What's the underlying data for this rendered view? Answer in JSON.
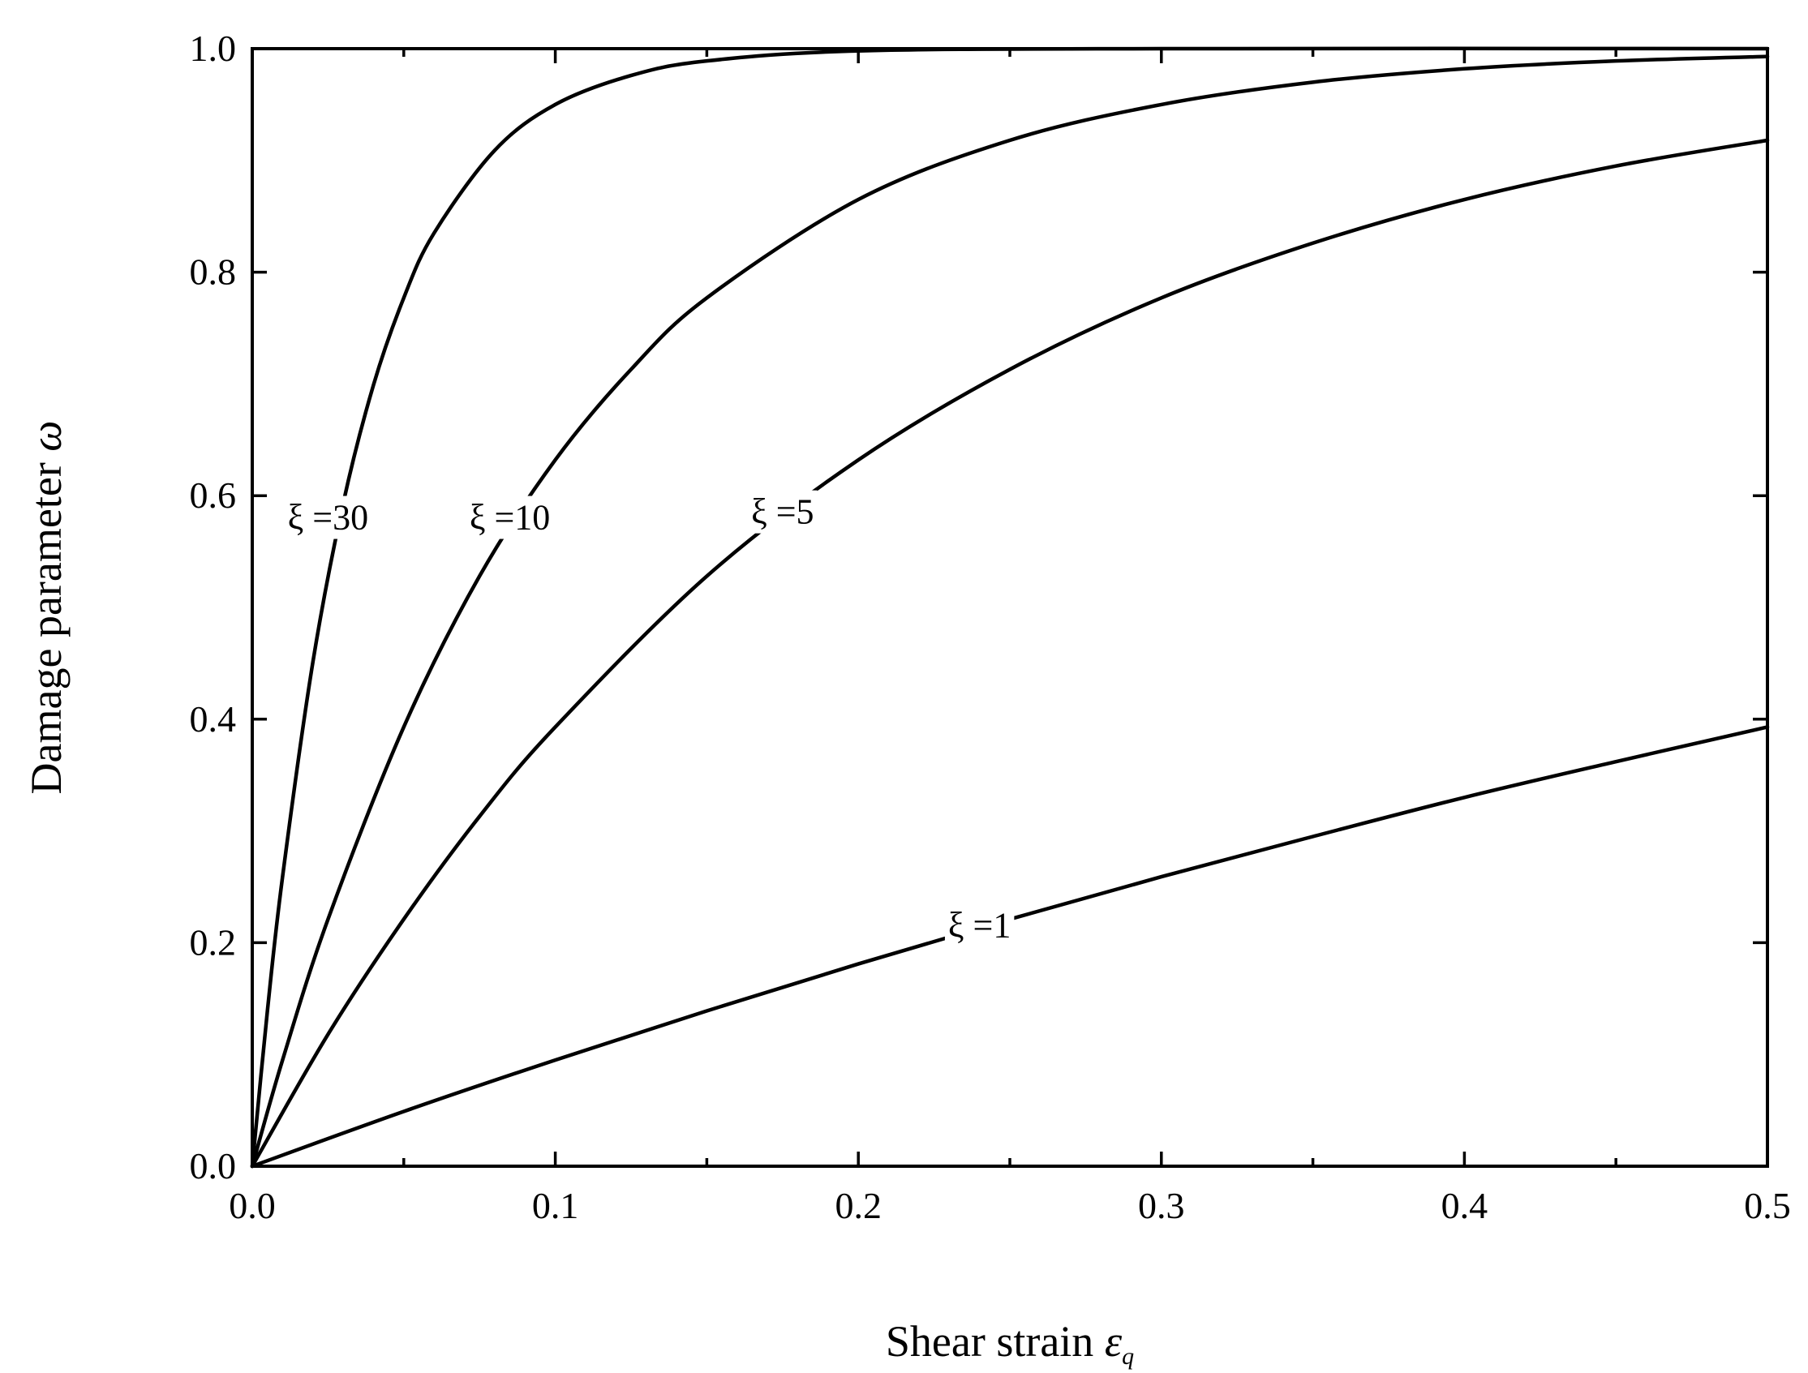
{
  "chart_data": {
    "type": "line",
    "xlabel": "Shear strain",
    "xlabel_symbol": "ε",
    "xlabel_subscript": "q",
    "ylabel": "Damage parameter",
    "ylabel_symbol": "ω",
    "xlim": [
      0,
      0.5
    ],
    "ylim": [
      0,
      1.0
    ],
    "x_ticks": [
      "0.0",
      "0.1",
      "0.2",
      "0.3",
      "0.4",
      "0.5"
    ],
    "x_tick_values": [
      0,
      0.1,
      0.2,
      0.3,
      0.4,
      0.5
    ],
    "x_minor_tick_values": [
      0.05,
      0.15,
      0.25,
      0.35,
      0.45
    ],
    "y_ticks": [
      "0.0",
      "0.2",
      "0.4",
      "0.6",
      "0.8",
      "1.0"
    ],
    "y_tick_values": [
      0,
      0.2,
      0.4,
      0.6,
      0.8,
      1.0
    ],
    "grid": false,
    "legend": "none",
    "series": [
      {
        "label": "ξ =1",
        "label_at": [
          0.24,
          0.205
        ],
        "x": [
          0,
          0.05,
          0.1,
          0.15,
          0.2,
          0.25,
          0.3,
          0.35,
          0.4,
          0.45,
          0.5
        ],
        "y": [
          0,
          0.049,
          0.095,
          0.139,
          0.181,
          0.221,
          0.259,
          0.295,
          0.33,
          0.362,
          0.393
        ]
      },
      {
        "label": "ξ =5",
        "label_at": [
          0.175,
          0.575
        ],
        "x": [
          0,
          0.025,
          0.05,
          0.075,
          0.1,
          0.15,
          0.2,
          0.25,
          0.3,
          0.35,
          0.4,
          0.45,
          0.5
        ],
        "y": [
          0,
          0.118,
          0.221,
          0.313,
          0.393,
          0.528,
          0.632,
          0.713,
          0.777,
          0.826,
          0.865,
          0.895,
          0.918
        ]
      },
      {
        "label": "ξ =10",
        "label_at": [
          0.085,
          0.57
        ],
        "x": [
          0,
          0.01,
          0.025,
          0.05,
          0.075,
          0.1,
          0.125,
          0.15,
          0.2,
          0.25,
          0.3,
          0.35,
          0.4,
          0.45,
          0.5
        ],
        "y": [
          0,
          0.095,
          0.221,
          0.393,
          0.528,
          0.632,
          0.713,
          0.777,
          0.865,
          0.918,
          0.95,
          0.97,
          0.982,
          0.989,
          0.993
        ]
      },
      {
        "label": "ξ =30",
        "label_at": [
          0.025,
          0.57
        ],
        "x": [
          0,
          0.005,
          0.01,
          0.02,
          0.03,
          0.04,
          0.05,
          0.06,
          0.08,
          0.1,
          0.125,
          0.15,
          0.2,
          0.3,
          0.5
        ],
        "y": [
          0,
          0.139,
          0.259,
          0.451,
          0.593,
          0.699,
          0.777,
          0.835,
          0.909,
          0.95,
          0.976,
          0.989,
          0.998,
          1.0,
          1.0
        ]
      }
    ]
  }
}
